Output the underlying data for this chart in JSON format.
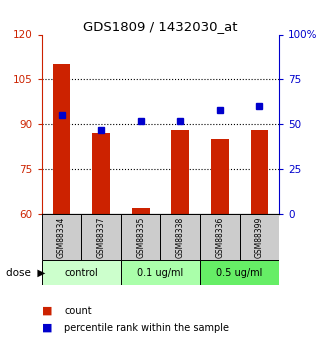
{
  "title": "GDS1809 / 1432030_at",
  "samples": [
    "GSM88334",
    "GSM88337",
    "GSM88335",
    "GSM88338",
    "GSM88336",
    "GSM88399"
  ],
  "bar_values": [
    110,
    87,
    62,
    88,
    85,
    88
  ],
  "percentile_values": [
    55,
    47,
    52,
    52,
    58,
    60
  ],
  "bar_color": "#cc2200",
  "dot_color": "#0000cc",
  "bar_bottom": 60,
  "left_ylim": [
    60,
    120
  ],
  "left_yticks": [
    60,
    75,
    90,
    105,
    120
  ],
  "right_ylim": [
    0,
    100
  ],
  "right_yticks": [
    0,
    25,
    50,
    75,
    100
  ],
  "right_yticklabels": [
    "0",
    "25",
    "50",
    "75",
    "100%"
  ],
  "group_labels": [
    "control",
    "0.1 ug/ml",
    "0.5 ug/ml"
  ],
  "group_bg_colors": [
    "#ccffcc",
    "#aaffaa",
    "#66ee66"
  ],
  "dose_label": "dose",
  "legend_items": [
    "count",
    "percentile rank within the sample"
  ],
  "legend_colors": [
    "#cc2200",
    "#0000cc"
  ],
  "sample_box_color": "#cccccc",
  "fig_bg": "#ffffff",
  "left_tick_color": "#cc2200",
  "right_tick_color": "#0000cc",
  "bar_width": 0.45
}
